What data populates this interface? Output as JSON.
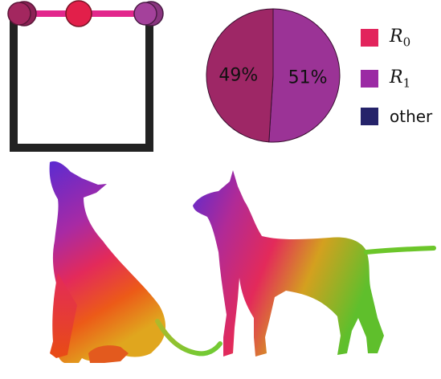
{
  "skeleton": {
    "joint_colors": {
      "left_joint": "#a0255c",
      "middle_joint": "#e21f4a",
      "right_joint": "#9b3a8e",
      "bar": "#e2278c",
      "frame": "#222222"
    }
  },
  "chart_data": {
    "type": "pie",
    "slices": [
      {
        "label": "49%",
        "value": 49,
        "color": "#9e2766"
      },
      {
        "label": "51%",
        "value": 51,
        "color": "#9b3396"
      }
    ],
    "legend": [
      {
        "label_base": "R",
        "label_sub": "0",
        "color": "#e2245c"
      },
      {
        "label_base": "R",
        "label_sub": "1",
        "color": "#9b2aa4"
      },
      {
        "label_base": "other",
        "label_sub": "",
        "color": "#25236a"
      }
    ],
    "legend_position": "right"
  },
  "figures": {
    "gradient": [
      "#5b2bd1",
      "#a82aa4",
      "#e32a5a",
      "#ec5a18",
      "#e0a61e",
      "#6cc62a"
    ]
  }
}
